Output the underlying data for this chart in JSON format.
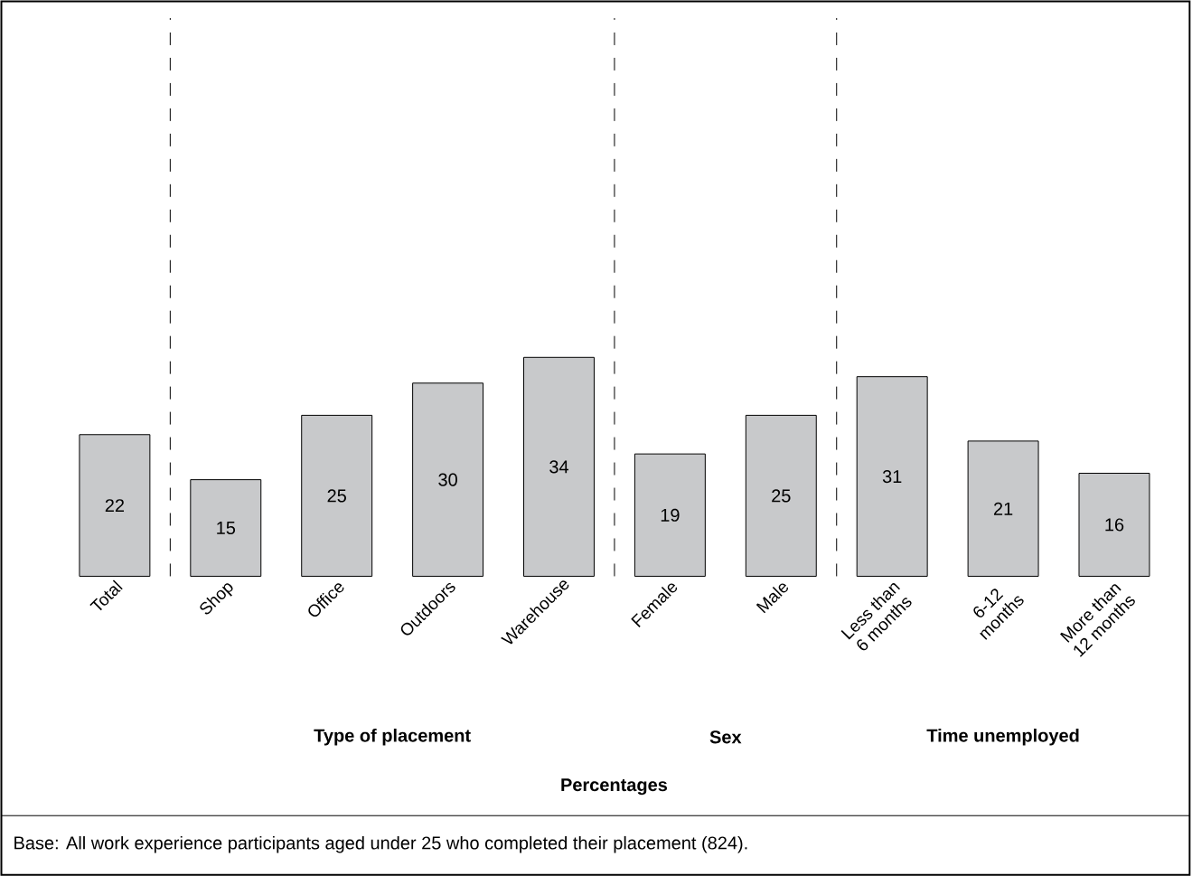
{
  "chart_data": {
    "type": "bar",
    "categories": [
      "Total",
      "Shop",
      "Office",
      "Outdoors",
      "Warehouse",
      "Female",
      "Male",
      "Less than 6 months",
      "6-12 months",
      "More than 12 months"
    ],
    "values": [
      22,
      15,
      25,
      30,
      34,
      19,
      25,
      31,
      21,
      16
    ],
    "color": "#c8c9cb",
    "data_labels": true,
    "annotations": [
      "Type of placement",
      "Sex",
      "Time unemployed",
      "Percentages",
      "Base: All work experience participants aged under 25 who completed their placement (824)."
    ]
  }
}
